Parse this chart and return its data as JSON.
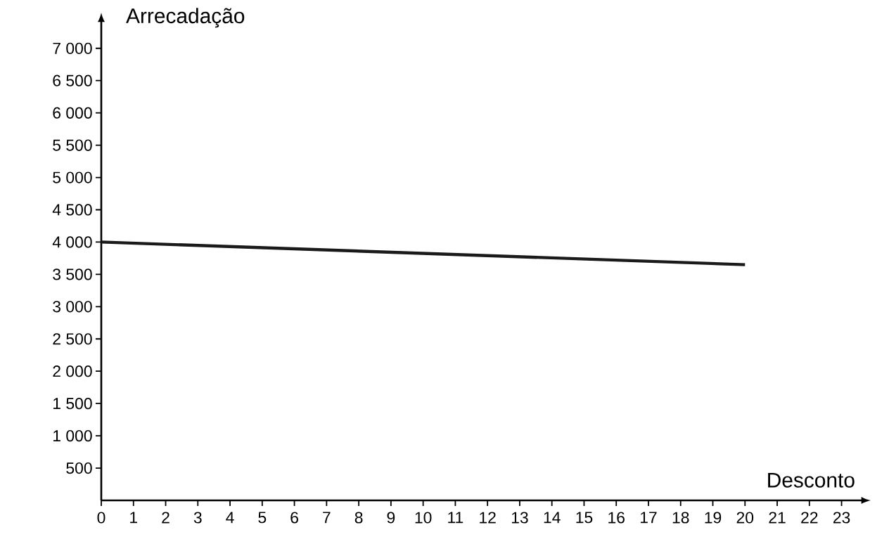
{
  "chart_data": {
    "type": "line",
    "xlabel": "Desconto",
    "ylabel": "Arrecadação",
    "x": [
      0,
      20
    ],
    "series": [
      {
        "color": "#1a1a1a",
        "values": [
          4000,
          3650
        ]
      }
    ],
    "xlim": [
      0,
      23.6
    ],
    "ylim": [
      0,
      7400
    ],
    "xticks": [
      0,
      1,
      2,
      3,
      4,
      5,
      6,
      7,
      8,
      9,
      10,
      11,
      12,
      13,
      14,
      15,
      16,
      17,
      18,
      19,
      20,
      21,
      22,
      23
    ],
    "yticks": [
      500,
      {
        "value": 1000,
        "label": "1 000"
      },
      {
        "value": 1500,
        "label": "1 500"
      },
      {
        "value": 2000,
        "label": "2 000"
      },
      {
        "value": 2500,
        "label": "2 500"
      },
      {
        "value": 3000,
        "label": "3 000"
      },
      {
        "value": 3500,
        "label": "3 500"
      },
      {
        "value": 4000,
        "label": "4 000"
      },
      {
        "value": 4500,
        "label": "4 500"
      },
      {
        "value": 5000,
        "label": "5 000"
      },
      {
        "value": 5500,
        "label": "5 500"
      },
      {
        "value": 6000,
        "label": "6 000"
      },
      {
        "value": 6500,
        "label": "6 500"
      },
      {
        "value": 7000,
        "label": "7 000"
      }
    ]
  }
}
